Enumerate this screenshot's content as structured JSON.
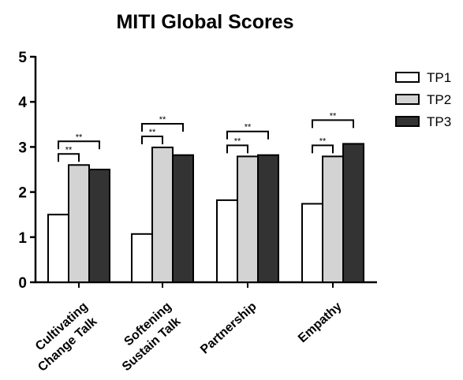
{
  "chart_data": {
    "type": "bar",
    "title": "MITI Global Scores",
    "xlabel": "",
    "ylabel": "",
    "ylim": [
      0,
      5
    ],
    "yticks": [
      "0",
      "1",
      "2",
      "3",
      "4",
      "5"
    ],
    "grid": false,
    "legend_position": "top-right",
    "categories": [
      [
        "Cultivating",
        "Change Talk"
      ],
      [
        "Softening",
        "Sustain Talk"
      ],
      [
        "Partnership"
      ],
      [
        "Empathy"
      ]
    ],
    "series": [
      {
        "name": "TP1",
        "color": "#ffffff",
        "values": [
          1.5,
          1.07,
          1.82,
          1.74
        ]
      },
      {
        "name": "TP2",
        "color": "#d3d3d3",
        "values": [
          2.6,
          2.99,
          2.79,
          2.79
        ]
      },
      {
        "name": "TP3",
        "color": "#333333",
        "values": [
          2.5,
          2.82,
          2.82,
          3.07
        ]
      }
    ],
    "significance": [
      {
        "category": 0,
        "from": 0,
        "to": 1,
        "label": "**",
        "level": 1
      },
      {
        "category": 0,
        "from": 0,
        "to": 2,
        "label": "**",
        "level": 2
      },
      {
        "category": 1,
        "from": 0,
        "to": 1,
        "label": "**",
        "level": 1
      },
      {
        "category": 1,
        "from": 0,
        "to": 2,
        "label": "**",
        "level": 2
      },
      {
        "category": 2,
        "from": 0,
        "to": 1,
        "label": "**",
        "level": 1
      },
      {
        "category": 2,
        "from": 0,
        "to": 2,
        "label": "**",
        "level": 2
      },
      {
        "category": 3,
        "from": 0,
        "to": 1,
        "label": "**",
        "level": 1
      },
      {
        "category": 3,
        "from": 0,
        "to": 2,
        "label": "**",
        "level": 2
      }
    ]
  }
}
